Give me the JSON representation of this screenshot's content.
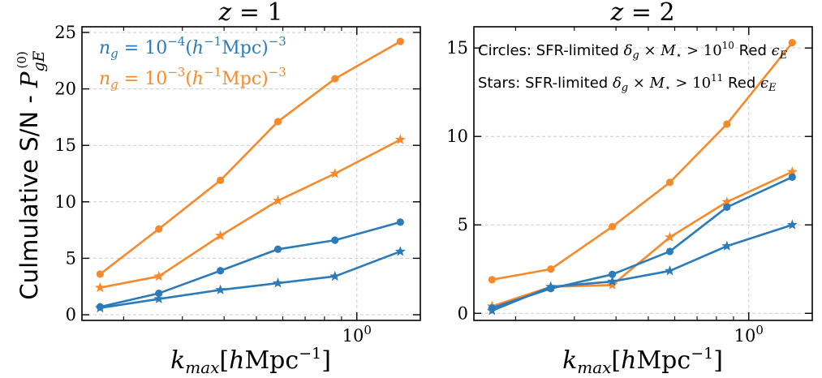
{
  "ylabel": "Culmulative S/N - P_{gE}^{(0)}",
  "colors": {
    "blue": "#2b7bba",
    "orange": "#f7892a"
  },
  "chart_data": [
    {
      "type": "line",
      "title": "z = 1",
      "xlabel": "k_max[hMpc^-1]",
      "x_scale": "log",
      "xlim": [
        0.15,
        1.55
      ],
      "ylim": [
        -0.5,
        25.5
      ],
      "yticks": [
        0,
        5,
        10,
        15,
        20,
        25
      ],
      "xtick_labels": [
        {
          "value": 1.0,
          "label": "10^0"
        }
      ],
      "grid": true,
      "x": [
        0.17,
        0.255,
        0.39,
        0.58,
        0.86,
        1.35
      ],
      "legend": {
        "placement": "top-left",
        "entries": [
          {
            "text": "n_g = 10^-4 (h^-1 Mpc)^-3",
            "color": "#2b7bba"
          },
          {
            "text": "n_g = 10^-3 (h^-1 Mpc)^-3",
            "color": "#f7892a"
          }
        ]
      },
      "series": [
        {
          "color": "#f7892a",
          "marker": "circle",
          "values": [
            3.6,
            7.6,
            11.9,
            17.1,
            20.9,
            24.2
          ]
        },
        {
          "color": "#f7892a",
          "marker": "star",
          "values": [
            2.4,
            3.4,
            7.0,
            10.1,
            12.5,
            15.5
          ]
        },
        {
          "color": "#2b7bba",
          "marker": "circle",
          "values": [
            0.7,
            1.9,
            3.9,
            5.8,
            6.6,
            8.2
          ]
        },
        {
          "color": "#2b7bba",
          "marker": "star",
          "values": [
            0.6,
            1.4,
            2.2,
            2.8,
            3.4,
            5.6
          ]
        }
      ]
    },
    {
      "type": "line",
      "title": "z = 2",
      "xlabel": "k_max[hMpc^-1]",
      "x_scale": "log",
      "xlim": [
        0.15,
        1.55
      ],
      "ylim": [
        -0.4,
        16.2
      ],
      "yticks": [
        0,
        5,
        10,
        15
      ],
      "xtick_labels": [
        {
          "value": 1.0,
          "label": "10^0"
        }
      ],
      "grid": true,
      "x": [
        0.17,
        0.255,
        0.39,
        0.58,
        0.86,
        1.35
      ],
      "annotations": [
        "Circles: SFR-limited δ_g × M_⋆ > 10^10 Red ε_E",
        "Stars: SFR-limited δ_g × M_⋆ > 10^11 Red ε_E"
      ],
      "series": [
        {
          "color": "#f7892a",
          "marker": "circle",
          "values": [
            1.9,
            2.5,
            4.9,
            7.4,
            10.7,
            15.3
          ]
        },
        {
          "color": "#f7892a",
          "marker": "star",
          "values": [
            0.4,
            1.5,
            1.6,
            4.3,
            6.3,
            8.0
          ]
        },
        {
          "color": "#2b7bba",
          "marker": "circle",
          "values": [
            0.3,
            1.4,
            2.2,
            3.5,
            6.0,
            7.7
          ]
        },
        {
          "color": "#2b7bba",
          "marker": "star",
          "values": [
            0.15,
            1.5,
            1.8,
            2.4,
            3.8,
            5.0
          ]
        }
      ]
    }
  ]
}
